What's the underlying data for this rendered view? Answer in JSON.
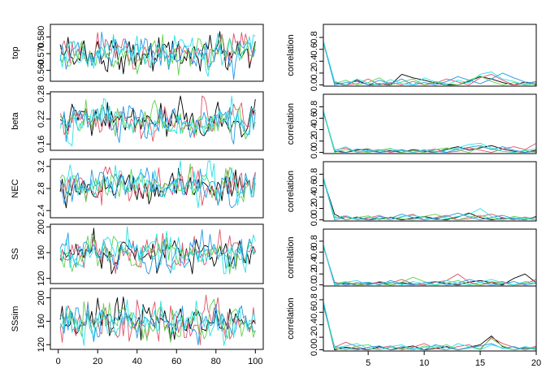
{
  "colors": [
    "#000000",
    "#df536b",
    "#61d04f",
    "#2297e6",
    "#28e2e5"
  ],
  "chart_data": [
    {
      "type": "line",
      "kind": "trace",
      "ylabel": "top",
      "xlim": [
        0,
        100
      ],
      "ylim": [
        0.5535,
        0.5875
      ],
      "yticks": [
        0.56,
        0.57,
        0.58
      ],
      "ytick_labels": [
        "0.560",
        "0.570",
        "0.580"
      ],
      "xticks": [
        0,
        20,
        40,
        60,
        80,
        100
      ],
      "x": [
        1,
        100
      ],
      "series_stats": {
        "mean": 0.5705,
        "sd": 0.0052,
        "min": 0.5545,
        "max": 0.5865
      },
      "n_series": 5,
      "grid": false,
      "legend": "none"
    },
    {
      "type": "line",
      "kind": "trace",
      "ylabel": "beta",
      "xlim": [
        0,
        100
      ],
      "ylim": [
        0.145,
        0.285
      ],
      "yticks": [
        0.16,
        0.22,
        0.28
      ],
      "ytick_labels": [
        "0.16",
        "0.22",
        "0.28"
      ],
      "xticks": [
        0,
        20,
        40,
        60,
        80,
        100
      ],
      "x": [
        1,
        100
      ],
      "series_stats": {
        "mean": 0.215,
        "sd": 0.021,
        "min": 0.155,
        "max": 0.275
      },
      "n_series": 5,
      "grid": false,
      "legend": "none"
    },
    {
      "type": "line",
      "kind": "trace",
      "ylabel": "NEC",
      "xlim": [
        0,
        100
      ],
      "ylim": [
        2.27,
        3.33
      ],
      "yticks": [
        2.4,
        2.8,
        3.2
      ],
      "ytick_labels": [
        "2.4",
        "2.8",
        "3.2"
      ],
      "xticks": [
        0,
        20,
        40,
        60,
        80,
        100
      ],
      "x": [
        1,
        100
      ],
      "series_stats": {
        "mean": 2.86,
        "sd": 0.16,
        "min": 2.45,
        "max": 3.3
      },
      "n_series": 5,
      "grid": false,
      "legend": "none"
    },
    {
      "type": "line",
      "kind": "trace",
      "ylabel": "SS",
      "xlim": [
        0,
        100
      ],
      "ylim": [
        112,
        204
      ],
      "yticks": [
        120,
        160,
        200
      ],
      "ytick_labels": [
        "120",
        "160",
        "200"
      ],
      "xticks": [
        0,
        20,
        40,
        60,
        80,
        100
      ],
      "x": [
        1,
        100
      ],
      "series_stats": {
        "mean": 158,
        "sd": 13,
        "min": 127,
        "max": 200
      },
      "n_series": 5,
      "grid": false,
      "legend": "none"
    },
    {
      "type": "line",
      "kind": "trace",
      "ylabel": "SSsim",
      "xlim": [
        0,
        100
      ],
      "ylim": [
        112,
        216
      ],
      "yticks": [
        120,
        160,
        200
      ],
      "ytick_labels": [
        "120",
        "160",
        "200"
      ],
      "xticks": [
        0,
        20,
        40,
        60,
        80,
        100
      ],
      "x": [
        1,
        100
      ],
      "series_stats": {
        "mean": 158,
        "sd": 15,
        "min": 118,
        "max": 214
      },
      "n_series": 5,
      "grid": false,
      "legend": "none"
    },
    {
      "type": "line",
      "kind": "autocorrelation",
      "ylabel": "correlation",
      "xlim": [
        1,
        20
      ],
      "ylim": [
        -0.02,
        1.02
      ],
      "yticks": [
        0.0,
        0.2,
        0.4,
        0.6,
        0.8
      ],
      "ytick_labels": [
        "0.0",
        "0.2",
        "0.4",
        "0.6",
        "0.8"
      ],
      "xticks": [
        5,
        10,
        15,
        20
      ],
      "lag_x": [
        1,
        2,
        3,
        4,
        5,
        6,
        7,
        8,
        9,
        10,
        11,
        12,
        13,
        14,
        15,
        16,
        17,
        18,
        19,
        20
      ],
      "series": [
        {
          "values": [
            0.72,
            0.03,
            0.0,
            0.08,
            0.0,
            0.02,
            0.0,
            0.18,
            0.12,
            0.08,
            0.03,
            0.0,
            0.0,
            0.06,
            0.14,
            0.1,
            0.04,
            0.0,
            0.05,
            0.0
          ]
        },
        {
          "values": [
            0.7,
            0.05,
            0.0,
            0.02,
            0.1,
            0.0,
            0.04,
            0.0,
            0.06,
            0.0,
            0.03,
            0.1,
            0.05,
            0.0,
            0.12,
            0.18,
            0.08,
            0.0,
            0.02,
            0.06
          ]
        },
        {
          "values": [
            0.71,
            0.02,
            0.08,
            0.0,
            0.04,
            0.12,
            0.0,
            0.05,
            0.1,
            0.0,
            0.06,
            0.02,
            0.0,
            0.08,
            0.15,
            0.06,
            0.0,
            0.04,
            0.0,
            0.02
          ]
        },
        {
          "values": [
            0.73,
            0.0,
            0.04,
            0.06,
            0.0,
            0.08,
            0.02,
            0.1,
            0.0,
            0.04,
            0.0,
            0.06,
            0.14,
            0.08,
            0.02,
            0.1,
            0.2,
            0.12,
            0.05,
            0.03
          ]
        },
        {
          "values": [
            0.74,
            0.06,
            0.0,
            0.1,
            0.03,
            0.0,
            0.09,
            0.02,
            0.0,
            0.12,
            0.05,
            0.0,
            0.08,
            0.03,
            0.18,
            0.22,
            0.1,
            0.06,
            0.0,
            0.04
          ]
        }
      ],
      "grid": false,
      "legend": "none"
    },
    {
      "type": "line",
      "kind": "autocorrelation",
      "ylabel": "correlation",
      "xlim": [
        1,
        20
      ],
      "ylim": [
        -0.02,
        1.02
      ],
      "yticks": [
        0.0,
        0.2,
        0.4,
        0.6,
        0.8
      ],
      "ytick_labels": [
        "0.0",
        "0.2",
        "0.4",
        "0.6",
        "0.8"
      ],
      "xticks": [
        5,
        10,
        15,
        20
      ],
      "lag_x": [
        1,
        2,
        3,
        4,
        5,
        6,
        7,
        8,
        9,
        10,
        11,
        12,
        13,
        14,
        15,
        16,
        17,
        18,
        19,
        20
      ],
      "series": [
        {
          "values": [
            0.72,
            0.02,
            0.0,
            0.04,
            0.06,
            0.0,
            0.03,
            0.0,
            0.05,
            0.02,
            0.0,
            0.06,
            0.1,
            0.04,
            0.08,
            0.12,
            0.06,
            0.02,
            0.0,
            0.04
          ]
        },
        {
          "values": [
            0.7,
            0.04,
            0.08,
            0.0,
            0.02,
            0.05,
            0.0,
            0.04,
            0.0,
            0.03,
            0.06,
            0.0,
            0.02,
            0.08,
            0.04,
            0.0,
            0.06,
            0.1,
            0.05,
            0.16
          ]
        },
        {
          "values": [
            0.71,
            0.0,
            0.05,
            0.02,
            0.0,
            0.04,
            0.07,
            0.0,
            0.03,
            0.0,
            0.05,
            0.08,
            0.04,
            0.0,
            0.1,
            0.06,
            0.02,
            0.0,
            0.03,
            0.0
          ]
        },
        {
          "values": [
            0.72,
            0.05,
            0.0,
            0.06,
            0.03,
            0.0,
            0.02,
            0.05,
            0.0,
            0.04,
            0.02,
            0.0,
            0.06,
            0.09,
            0.12,
            0.05,
            0.1,
            0.04,
            0.0,
            0.02
          ]
        },
        {
          "values": [
            0.74,
            0.03,
            0.1,
            0.0,
            0.05,
            0.02,
            0.06,
            0.03,
            0.0,
            0.05,
            0.0,
            0.04,
            0.08,
            0.14,
            0.16,
            0.08,
            0.02,
            0.0,
            0.04,
            0.06
          ]
        }
      ],
      "grid": false,
      "legend": "none"
    },
    {
      "type": "line",
      "kind": "autocorrelation",
      "ylabel": "correlation",
      "xlim": [
        1,
        20
      ],
      "ylim": [
        -0.02,
        1.02
      ],
      "yticks": [
        0.0,
        0.2,
        0.4,
        0.6,
        0.8
      ],
      "ytick_labels": [
        "0.0",
        "0.2",
        "0.4",
        "0.6",
        "0.8"
      ],
      "xticks": [
        5,
        10,
        15,
        20
      ],
      "lag_x": [
        1,
        2,
        3,
        4,
        5,
        6,
        7,
        8,
        9,
        10,
        11,
        12,
        13,
        14,
        15,
        16,
        17,
        18,
        19,
        20
      ],
      "series": [
        {
          "values": [
            0.72,
            0.1,
            0.0,
            0.05,
            0.0,
            0.02,
            0.04,
            0.0,
            0.03,
            0.06,
            0.02,
            0.0,
            0.05,
            0.12,
            0.04,
            0.0,
            0.03,
            0.02,
            0.0,
            0.06
          ]
        },
        {
          "values": [
            0.71,
            0.04,
            0.06,
            0.0,
            0.03,
            0.08,
            0.0,
            0.05,
            0.1,
            0.0,
            0.04,
            0.08,
            0.0,
            0.02,
            0.06,
            0.1,
            0.04,
            0.0,
            0.05,
            0.0
          ]
        },
        {
          "values": [
            0.7,
            0.06,
            0.0,
            0.04,
            0.07,
            0.0,
            0.05,
            0.02,
            0.0,
            0.06,
            0.1,
            0.03,
            0.0,
            0.05,
            0.08,
            0.02,
            0.0,
            0.06,
            0.03,
            0.04
          ]
        },
        {
          "values": [
            0.73,
            0.0,
            0.05,
            0.02,
            0.0,
            0.06,
            0.03,
            0.1,
            0.04,
            0.0,
            0.03,
            0.06,
            0.12,
            0.05,
            0.0,
            0.04,
            0.08,
            0.02,
            0.0,
            0.05
          ]
        },
        {
          "values": [
            0.75,
            0.03,
            0.08,
            0.0,
            0.05,
            0.02,
            0.0,
            0.06,
            0.08,
            0.04,
            0.0,
            0.02,
            0.06,
            0.1,
            0.2,
            0.06,
            0.0,
            0.04,
            0.02,
            0.0
          ]
        }
      ],
      "grid": false,
      "legend": "none"
    },
    {
      "type": "line",
      "kind": "autocorrelation",
      "ylabel": "correlation",
      "xlim": [
        1,
        20
      ],
      "ylim": [
        -0.02,
        1.02
      ],
      "yticks": [
        0.0,
        0.2,
        0.4,
        0.6,
        0.8
      ],
      "ytick_labels": [
        "0.0",
        "0.2",
        "0.4",
        "0.6",
        "0.8"
      ],
      "xticks": [
        5,
        10,
        15,
        20
      ],
      "lag_x": [
        1,
        2,
        3,
        4,
        5,
        6,
        7,
        8,
        9,
        10,
        11,
        12,
        13,
        14,
        15,
        16,
        17,
        18,
        19,
        20
      ],
      "series": [
        {
          "values": [
            0.72,
            0.0,
            0.03,
            0.0,
            0.02,
            0.05,
            0.0,
            0.04,
            0.02,
            0.0,
            0.06,
            0.03,
            0.0,
            0.05,
            0.08,
            0.04,
            0.0,
            0.12,
            0.2,
            0.04
          ]
        },
        {
          "values": [
            0.7,
            0.05,
            0.0,
            0.04,
            0.0,
            0.06,
            0.03,
            0.1,
            0.02,
            0.0,
            0.05,
            0.08,
            0.2,
            0.05,
            0.0,
            0.04,
            0.06,
            0.0,
            0.02,
            0.1
          ]
        },
        {
          "values": [
            0.71,
            0.02,
            0.06,
            0.0,
            0.04,
            0.02,
            0.0,
            0.05,
            0.14,
            0.06,
            0.0,
            0.03,
            0.08,
            0.02,
            0.0,
            0.06,
            0.03,
            0.0,
            0.04,
            0.02
          ]
        },
        {
          "values": [
            0.72,
            0.04,
            0.0,
            0.03,
            0.05,
            0.0,
            0.08,
            0.02,
            0.0,
            0.04,
            0.06,
            0.0,
            0.03,
            0.1,
            0.05,
            0.0,
            0.02,
            0.06,
            0.0,
            0.03
          ]
        },
        {
          "values": [
            0.74,
            0.0,
            0.05,
            0.08,
            0.0,
            0.03,
            0.05,
            0.0,
            0.06,
            0.02,
            0.0,
            0.08,
            0.03,
            0.0,
            0.05,
            0.1,
            0.04,
            0.0,
            0.06,
            0.05
          ]
        }
      ],
      "grid": false,
      "legend": "none"
    },
    {
      "type": "line",
      "kind": "autocorrelation",
      "ylabel": "correlation",
      "xlim": [
        1,
        20
      ],
      "ylim": [
        -0.02,
        1.02
      ],
      "yticks": [
        0.0,
        0.2,
        0.4,
        0.6,
        0.8
      ],
      "ytick_labels": [
        "0.0",
        "0.2",
        "0.4",
        "0.6",
        "0.8"
      ],
      "xticks": [
        5,
        10,
        15,
        20
      ],
      "lag_x": [
        1,
        2,
        3,
        4,
        5,
        6,
        7,
        8,
        9,
        10,
        11,
        12,
        13,
        14,
        15,
        16,
        17,
        18,
        19,
        20
      ],
      "series": [
        {
          "values": [
            0.73,
            0.0,
            0.04,
            0.02,
            0.0,
            0.05,
            0.0,
            0.03,
            0.06,
            0.0,
            0.02,
            0.05,
            0.0,
            0.04,
            0.08,
            0.22,
            0.05,
            0.0,
            0.03,
            0.02
          ]
        },
        {
          "values": [
            0.7,
            0.04,
            0.12,
            0.05,
            0.0,
            0.03,
            0.06,
            0.0,
            0.04,
            0.1,
            0.02,
            0.0,
            0.05,
            0.08,
            0.0,
            0.2,
            0.1,
            0.04,
            0.0,
            0.06
          ]
        },
        {
          "values": [
            0.71,
            0.02,
            0.0,
            0.06,
            0.08,
            0.0,
            0.04,
            0.02,
            0.0,
            0.06,
            0.03,
            0.08,
            0.0,
            0.04,
            0.02,
            0.18,
            0.06,
            0.0,
            0.04,
            0.0
          ]
        },
        {
          "values": [
            0.72,
            0.05,
            0.02,
            0.0,
            0.04,
            0.06,
            0.0,
            0.05,
            0.02,
            0.0,
            0.08,
            0.04,
            0.0,
            0.03,
            0.06,
            0.1,
            0.02,
            0.05,
            0.0,
            0.04
          ]
        },
        {
          "values": [
            0.78,
            0.03,
            0.06,
            0.1,
            0.02,
            0.0,
            0.05,
            0.08,
            0.0,
            0.04,
            0.06,
            0.0,
            0.1,
            0.05,
            0.0,
            0.08,
            0.03,
            0.0,
            0.05,
            0.02
          ]
        }
      ],
      "grid": false,
      "legend": "none"
    }
  ]
}
